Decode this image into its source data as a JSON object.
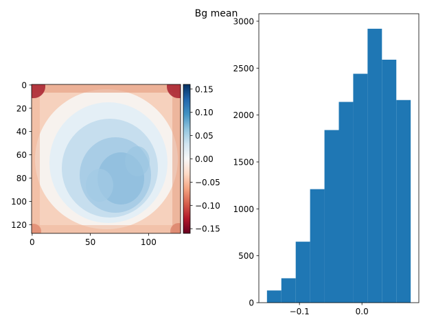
{
  "figure": {
    "suptitle": "Bg mean"
  },
  "chart_data": [
    {
      "type": "heatmap",
      "colormap": "RdBu",
      "xticks": [
        "0",
        "50",
        "100"
      ],
      "yticks": [
        "0",
        "20",
        "40",
        "60",
        "80",
        "100",
        "120"
      ],
      "xlim": [
        -0.5,
        127.5
      ],
      "ylim": [
        127.5,
        -0.5
      ],
      "description_values": "128x128 background mean map: negative (red) at corners/edges, positive (blue) in center",
      "colorbar": {
        "range": [
          -0.16,
          0.16
        ],
        "ticks": [
          "0.15",
          "0.10",
          "0.05",
          "0.00",
          "−0.05",
          "−0.10",
          "−0.15"
        ],
        "tick_values": [
          0.15,
          0.1,
          0.05,
          0.0,
          -0.05,
          -0.1,
          -0.15
        ]
      }
    },
    {
      "type": "bar",
      "histogram": true,
      "bin_edges": [
        -0.152,
        -0.129,
        -0.106,
        -0.083,
        -0.06,
        -0.037,
        -0.014,
        0.009,
        0.032,
        0.055,
        0.078
      ],
      "values": [
        130,
        260,
        650,
        1210,
        1840,
        2140,
        2440,
        2920,
        2590,
        2160
      ],
      "xlim": [
        -0.165,
        0.091
      ],
      "ylim": [
        0,
        3080
      ],
      "xticks": [
        "−0.1",
        "0.0"
      ],
      "xtick_values": [
        -0.1,
        0.0
      ],
      "yticks": [
        "0",
        "500",
        "1000",
        "1500",
        "2000",
        "2500",
        "3000"
      ],
      "ytick_values": [
        0,
        500,
        1000,
        1500,
        2000,
        2500,
        3000
      ],
      "bar_color": "#1f77b4"
    }
  ]
}
